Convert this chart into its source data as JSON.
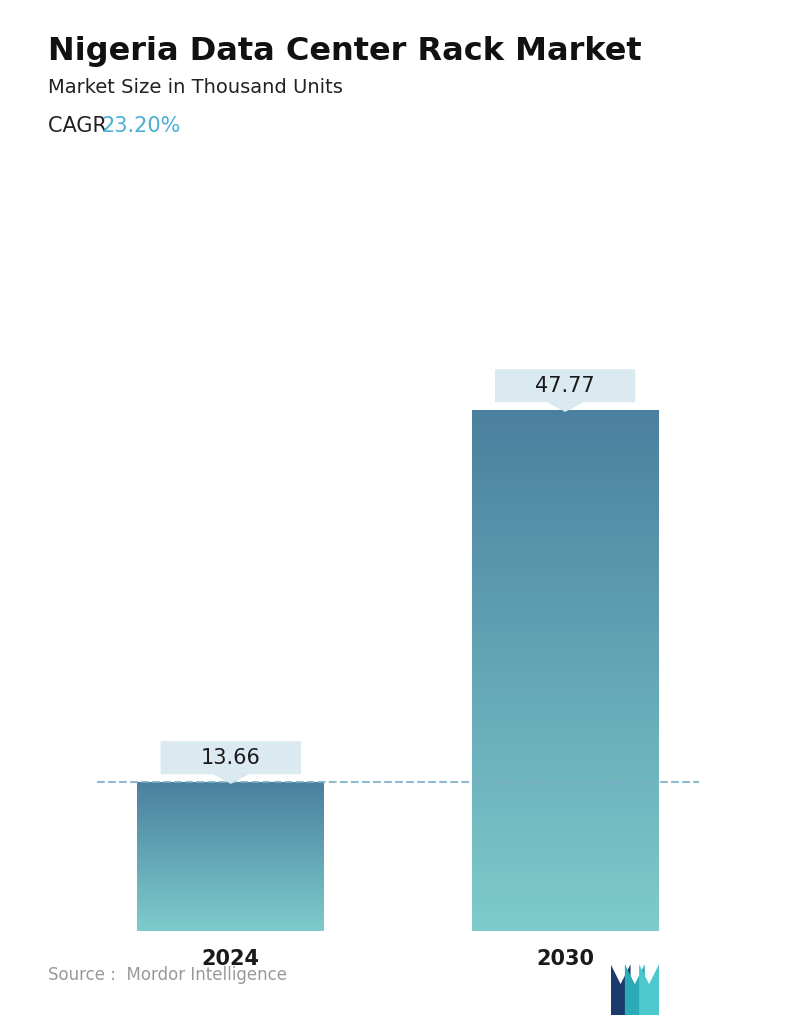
{
  "title": "Nigeria Data Center Rack Market",
  "subtitle": "Market Size in Thousand Units",
  "cagr_label": "CAGR ",
  "cagr_value": "23.20%",
  "cagr_color": "#4BAFD6",
  "categories": [
    "2024",
    "2030"
  ],
  "values": [
    13.66,
    47.77
  ],
  "bar_color_top": "#4A7F9E",
  "bar_color_bottom": "#7DCBCB",
  "dashed_line_color": "#7AAFC8",
  "dashed_line_y": 13.66,
  "tooltip_bg": "#D8E8EF",
  "tooltip_text_color": "#1a1a1a",
  "source_text": "Source :  Mordor Intelligence",
  "source_color": "#999999",
  "background_color": "#FFFFFF",
  "bar_width": 0.28,
  "ylim": [
    0,
    55
  ],
  "title_fontsize": 23,
  "subtitle_fontsize": 14,
  "cagr_fontsize": 15,
  "tick_fontsize": 15,
  "tooltip_fontsize": 15,
  "source_fontsize": 12
}
